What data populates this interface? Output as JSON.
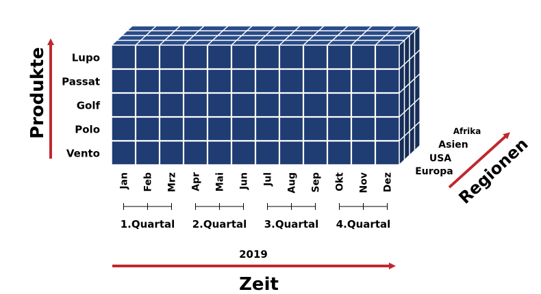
{
  "axes": {
    "produkte": "Produkte",
    "zeit": "Zeit",
    "regionen": "Regionen"
  },
  "year": "2019",
  "products": [
    "Lupo",
    "Passat",
    "Golf",
    "Polo",
    "Vento"
  ],
  "months": [
    "Jan",
    "Feb",
    "Mrz",
    "Apr",
    "Mai",
    "Jun",
    "Jul",
    "Aug",
    "Sep",
    "Okt",
    "Nov",
    "Dez"
  ],
  "quarters": [
    "1.Quartal",
    "2.Quartal",
    "3.Quartal",
    "4.Quartal"
  ],
  "regions": [
    "Afrika",
    "Asien",
    "USA",
    "Europa"
  ],
  "colors": {
    "cube_front": "#1f3d73",
    "cube_top": "#2a4c88",
    "cube_side": "#162d57",
    "grid_line": "#ffffff",
    "arrow": "#c0282d",
    "text": "#000000"
  }
}
